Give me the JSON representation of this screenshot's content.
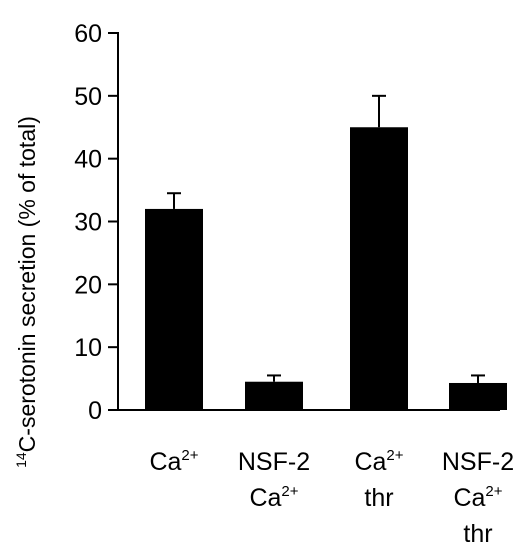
{
  "chart_data": {
    "type": "bar",
    "ylabel": {
      "sup": "14",
      "text": "C-serotonin secretion (% of total)"
    },
    "ylim": [
      0,
      60
    ],
    "yticks": [
      0,
      10,
      20,
      30,
      40,
      50,
      60
    ],
    "grid": false,
    "categories": [
      {
        "lines": [
          {
            "text": "Ca",
            "sup": "2+"
          }
        ]
      },
      {
        "lines": [
          {
            "text": "NSF-2",
            "sup": ""
          },
          {
            "text": "Ca",
            "sup": "2+"
          }
        ]
      },
      {
        "lines": [
          {
            "text": "Ca",
            "sup": "2+"
          },
          {
            "text": "thr",
            "sup": ""
          }
        ]
      },
      {
        "lines": [
          {
            "text": "NSF-2",
            "sup": ""
          },
          {
            "text": "Ca",
            "sup": "2+"
          },
          {
            "text": "thr",
            "sup": ""
          }
        ]
      }
    ],
    "values": [
      32,
      4.5,
      45,
      4.3
    ],
    "errors": [
      2.5,
      1.0,
      5.0,
      1.2
    ],
    "bar_color": "#000000"
  }
}
